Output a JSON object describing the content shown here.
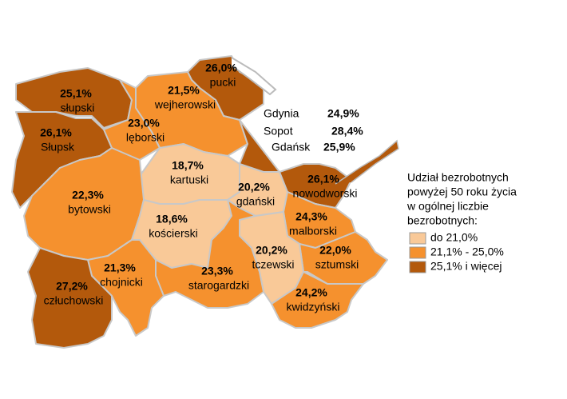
{
  "map": {
    "regions": [
      {
        "name": "słupski",
        "value": 25.1,
        "value_label": "25,1%",
        "color": "#b3590c"
      },
      {
        "name": "Słupsk",
        "value": 26.1,
        "value_label": "26,1%",
        "color": "#b3590c"
      },
      {
        "name": "pucki",
        "value": 26.0,
        "value_label": "26,0%",
        "color": "#b3590c"
      },
      {
        "name": "wejherowski",
        "value": 21.5,
        "value_label": "21,5%",
        "color": "#f5912e"
      },
      {
        "name": "lęborski",
        "value": 23.0,
        "value_label": "23,0%",
        "color": "#f5912e"
      },
      {
        "name": "kartuski",
        "value": 18.7,
        "value_label": "18,7%",
        "color": "#f9c998"
      },
      {
        "name": "gdański",
        "value": 20.2,
        "value_label": "20,2%",
        "color": "#f9c998"
      },
      {
        "name": "nowodworski",
        "value": 26.1,
        "value_label": "26,1%",
        "color": "#b3590c"
      },
      {
        "name": "bytowski",
        "value": 22.3,
        "value_label": "22,3%",
        "color": "#f5912e"
      },
      {
        "name": "kościerski",
        "value": 18.6,
        "value_label": "18,6%",
        "color": "#f9c998"
      },
      {
        "name": "malborski",
        "value": 24.3,
        "value_label": "24,3%",
        "color": "#f5912e"
      },
      {
        "name": "sztumski",
        "value": 22.0,
        "value_label": "22,0%",
        "color": "#f5912e"
      },
      {
        "name": "tczewski",
        "value": 20.2,
        "value_label": "20,2%",
        "color": "#f9c998"
      },
      {
        "name": "starogardzki",
        "value": 23.3,
        "value_label": "23,3%",
        "color": "#f5912e"
      },
      {
        "name": "kwidzyński",
        "value": 24.2,
        "value_label": "24,2%",
        "color": "#f5912e"
      },
      {
        "name": "chojnicki",
        "value": 21.3,
        "value_label": "21,3%",
        "color": "#f5912e"
      },
      {
        "name": "człuchowski",
        "value": 27.2,
        "value_label": "27,2%",
        "color": "#b3590c"
      }
    ],
    "cities": [
      {
        "name": "Gdynia",
        "value": 24.9,
        "value_label": "24,9%"
      },
      {
        "name": "Sopot",
        "value": 28.4,
        "value_label": "28,4%"
      },
      {
        "name": "Gdańsk",
        "value": 25.9,
        "value_label": "25,9%"
      }
    ],
    "legend": {
      "title_lines": [
        "Udział bezrobotnych",
        "powyżej 50 roku życia",
        "w ogólnej liczbie",
        "bezrobotnych:"
      ],
      "items": [
        {
          "label": "do 21,0%",
          "color": "#f9c998"
        },
        {
          "label": "21,1% - 25,0%",
          "color": "#f5912e"
        },
        {
          "label": "25,1% i więcej",
          "color": "#b3590c"
        }
      ]
    }
  }
}
